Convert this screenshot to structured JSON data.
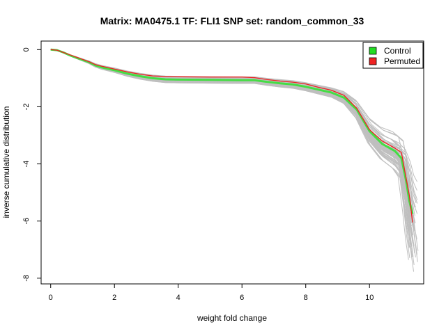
{
  "chart_data": {
    "type": "line",
    "title": "Matrix: MA0475.1 TF: FLI1 SNP set: random_common_33",
    "xlabel": "weight fold change",
    "ylabel": "inverse cumulative distribution",
    "xlim": [
      -0.3,
      11.7
    ],
    "ylim": [
      -8.2,
      0.3
    ],
    "x_ticks": [
      0,
      2,
      4,
      6,
      8,
      10
    ],
    "y_ticks": [
      0,
      -2,
      -4,
      -6,
      -8
    ],
    "grid": false,
    "legend": {
      "position": "top-right",
      "entries": [
        {
          "label": "Control",
          "color": "#22dd22"
        },
        {
          "label": "Permuted",
          "color": "#ee2222"
        }
      ]
    },
    "background_series": {
      "color": "#bfbfbf",
      "count": 60
    },
    "series": [
      {
        "name": "Control",
        "color": "#44dd44",
        "points": [
          [
            0,
            0
          ],
          [
            0.2,
            -0.02
          ],
          [
            0.4,
            -0.1
          ],
          [
            0.6,
            -0.2
          ],
          [
            0.8,
            -0.28
          ],
          [
            1.0,
            -0.36
          ],
          [
            1.2,
            -0.44
          ],
          [
            1.4,
            -0.55
          ],
          [
            1.6,
            -0.62
          ],
          [
            2.0,
            -0.72
          ],
          [
            2.4,
            -0.84
          ],
          [
            2.8,
            -0.93
          ],
          [
            3.2,
            -1.0
          ],
          [
            3.6,
            -1.04
          ],
          [
            4.0,
            -1.05
          ],
          [
            5.0,
            -1.06
          ],
          [
            6.0,
            -1.07
          ],
          [
            6.4,
            -1.07
          ],
          [
            6.8,
            -1.13
          ],
          [
            7.2,
            -1.18
          ],
          [
            7.6,
            -1.22
          ],
          [
            8.0,
            -1.3
          ],
          [
            8.4,
            -1.4
          ],
          [
            8.8,
            -1.5
          ],
          [
            9.2,
            -1.68
          ],
          [
            9.6,
            -2.1
          ],
          [
            10.0,
            -2.85
          ],
          [
            10.4,
            -3.3
          ],
          [
            10.8,
            -3.55
          ],
          [
            11.0,
            -3.8
          ],
          [
            11.15,
            -4.6
          ],
          [
            11.25,
            -5.3
          ],
          [
            11.35,
            -5.75
          ]
        ]
      },
      {
        "name": "Permuted",
        "color": "#ee2222",
        "points": [
          [
            0,
            0
          ],
          [
            0.2,
            -0.02
          ],
          [
            0.4,
            -0.1
          ],
          [
            0.6,
            -0.18
          ],
          [
            0.8,
            -0.26
          ],
          [
            1.0,
            -0.34
          ],
          [
            1.2,
            -0.42
          ],
          [
            1.4,
            -0.52
          ],
          [
            1.6,
            -0.58
          ],
          [
            2.0,
            -0.68
          ],
          [
            2.4,
            -0.78
          ],
          [
            2.8,
            -0.86
          ],
          [
            3.2,
            -0.92
          ],
          [
            3.6,
            -0.94
          ],
          [
            4.0,
            -0.95
          ],
          [
            5.0,
            -0.96
          ],
          [
            6.0,
            -0.96
          ],
          [
            6.4,
            -0.98
          ],
          [
            6.8,
            -1.05
          ],
          [
            7.2,
            -1.1
          ],
          [
            7.6,
            -1.14
          ],
          [
            8.0,
            -1.2
          ],
          [
            8.4,
            -1.32
          ],
          [
            8.8,
            -1.42
          ],
          [
            9.2,
            -1.6
          ],
          [
            9.6,
            -2.05
          ],
          [
            10.0,
            -2.8
          ],
          [
            10.4,
            -3.2
          ],
          [
            10.8,
            -3.45
          ],
          [
            11.0,
            -3.6
          ],
          [
            11.15,
            -4.5
          ],
          [
            11.25,
            -5.1
          ],
          [
            11.35,
            -6.05
          ]
        ]
      }
    ]
  }
}
